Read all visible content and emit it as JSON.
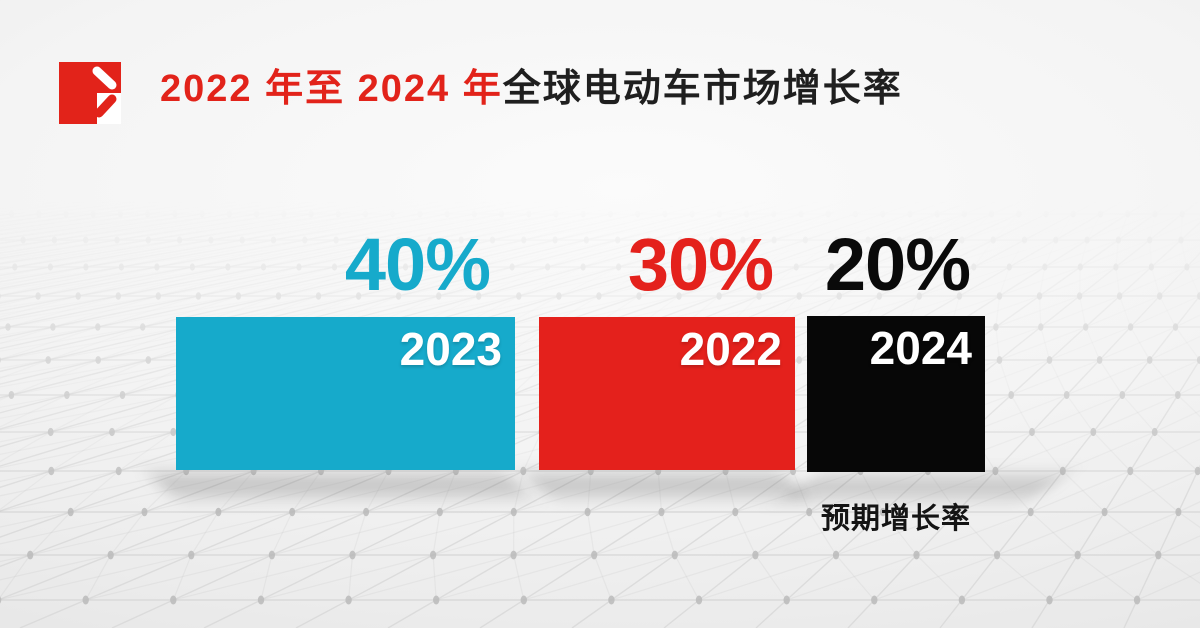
{
  "header": {
    "title_accent": "2022 年至 2024 年",
    "title_rest": "全球电动车市场增长率"
  },
  "logo": {
    "icon": "red-square-chevron-logo",
    "color": "#e2231a"
  },
  "note": "预期增长率",
  "colors": {
    "brand_red": "#e2231a",
    "bar_cyan": "#16aacb",
    "bar_red": "#e4211c",
    "bar_black": "#070707",
    "background": "#efefef",
    "grid_line": "#d8d8d8",
    "grid_dot": "#bdbdbd"
  },
  "chart_data": {
    "type": "bar",
    "title": "2022 年至 2024 年全球电动车市场增长率",
    "orientation": "horizontal-width-encoded",
    "categories": [
      "2023",
      "2022",
      "2024"
    ],
    "values": [
      40,
      30,
      20
    ],
    "unit": "%",
    "xlabel": "",
    "ylabel": "",
    "legend_position": "none",
    "grid": "decorative perspective dot-grid background",
    "note": "预期增长率",
    "note_applies_to": "2024",
    "bars": [
      {
        "year": "2023",
        "value": 40,
        "value_label": "40%",
        "color": "#16aacb"
      },
      {
        "year": "2022",
        "value": 30,
        "value_label": "30%",
        "color": "#e4211c"
      },
      {
        "year": "2024",
        "value": 20,
        "value_label": "20%",
        "color": "#070707",
        "note": "预期增长率"
      }
    ]
  }
}
